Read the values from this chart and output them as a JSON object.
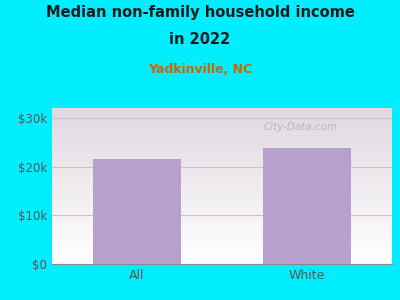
{
  "title_line1": "Median non-family household income",
  "title_line2": "in 2022",
  "subtitle": "Yadkinville, NC",
  "categories": [
    "All",
    "White"
  ],
  "values": [
    21500,
    23800
  ],
  "bar_color": "#b8a0cc",
  "title_color": "#1a1a1a",
  "subtitle_color": "#cc6600",
  "tick_label_color": "#555555",
  "background_outer": "#00eeff",
  "ytick_labels": [
    "$0",
    "$10k",
    "$20k",
    "$30k"
  ],
  "ytick_values": [
    0,
    10000,
    20000,
    30000
  ],
  "ylim": [
    0,
    32000
  ],
  "watermark": "City-Data.com",
  "grid_color": "#ddbbbb",
  "plot_bg_color": "#f0faf0"
}
